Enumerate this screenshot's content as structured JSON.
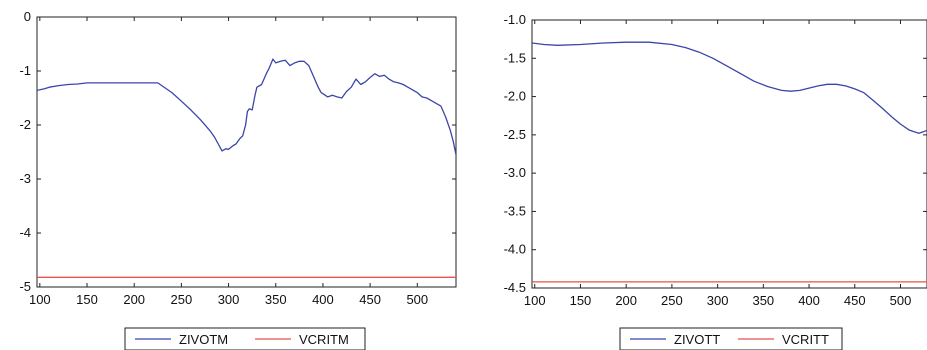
{
  "chart_data": [
    {
      "type": "line",
      "title": "",
      "xlabel": "",
      "ylabel": "",
      "xlim": [
        97,
        541
      ],
      "ylim": [
        -5,
        0
      ],
      "xticks": [
        "100",
        "150",
        "200",
        "250",
        "300",
        "350",
        "400",
        "450",
        "500"
      ],
      "yticks": [
        "0",
        "-1",
        "-2",
        "-3",
        "-4",
        "-5"
      ],
      "grid": false,
      "legend_position": "bottom",
      "series": [
        {
          "name": "ZIVOTM",
          "color": "#3b46a8",
          "x": [
            97,
            105,
            110,
            120,
            130,
            140,
            150,
            160,
            170,
            180,
            190,
            200,
            210,
            220,
            225,
            230,
            240,
            250,
            260,
            270,
            280,
            285,
            290,
            293,
            297,
            300,
            305,
            308,
            312,
            315,
            318,
            320,
            322,
            325,
            328,
            330,
            335,
            340,
            343,
            347,
            350,
            355,
            360,
            365,
            370,
            375,
            380,
            385,
            390,
            395,
            398,
            400,
            405,
            410,
            415,
            420,
            425,
            430,
            435,
            440,
            445,
            450,
            455,
            460,
            465,
            470,
            475,
            480,
            485,
            490,
            495,
            500,
            505,
            510,
            515,
            520,
            525,
            530,
            535,
            538,
            541
          ],
          "values": [
            -1.36,
            -1.33,
            -1.3,
            -1.27,
            -1.25,
            -1.24,
            -1.22,
            -1.22,
            -1.22,
            -1.22,
            -1.22,
            -1.22,
            -1.22,
            -1.22,
            -1.22,
            -1.28,
            -1.4,
            -1.56,
            -1.72,
            -1.9,
            -2.1,
            -2.22,
            -2.38,
            -2.48,
            -2.44,
            -2.45,
            -2.38,
            -2.35,
            -2.25,
            -2.2,
            -2.0,
            -1.75,
            -1.7,
            -1.72,
            -1.45,
            -1.3,
            -1.25,
            -1.05,
            -0.95,
            -0.78,
            -0.85,
            -0.82,
            -0.8,
            -0.9,
            -0.85,
            -0.82,
            -0.82,
            -0.9,
            -1.1,
            -1.3,
            -1.4,
            -1.42,
            -1.48,
            -1.45,
            -1.48,
            -1.5,
            -1.38,
            -1.3,
            -1.15,
            -1.25,
            -1.2,
            -1.12,
            -1.05,
            -1.1,
            -1.08,
            -1.15,
            -1.2,
            -1.22,
            -1.25,
            -1.3,
            -1.35,
            -1.4,
            -1.48,
            -1.5,
            -1.55,
            -1.6,
            -1.65,
            -1.85,
            -2.1,
            -2.3,
            -2.55
          ]
        },
        {
          "name": "VCRITM",
          "color": "#e8524a",
          "x": [
            97,
            541
          ],
          "values": [
            -4.82,
            -4.82
          ]
        }
      ]
    },
    {
      "type": "line",
      "title": "",
      "xlabel": "",
      "ylabel": "",
      "xlim": [
        97,
        529
      ],
      "ylim": [
        -4.5,
        -1.0
      ],
      "xticks": [
        "100",
        "150",
        "200",
        "250",
        "300",
        "350",
        "400",
        "450",
        "500"
      ],
      "yticks": [
        "-1.0",
        "-1.5",
        "-2.0",
        "-2.5",
        "-3.0",
        "-3.5",
        "-4.0",
        "-4.5"
      ],
      "grid": false,
      "legend_position": "bottom",
      "series": [
        {
          "name": "ZIVOTT",
          "color": "#3b46a8",
          "x": [
            97,
            110,
            125,
            150,
            175,
            200,
            225,
            250,
            265,
            280,
            295,
            310,
            325,
            340,
            355,
            370,
            380,
            390,
            400,
            410,
            420,
            430,
            440,
            450,
            460,
            470,
            480,
            490,
            500,
            510,
            520,
            525,
            529
          ],
          "values": [
            -1.3,
            -1.32,
            -1.33,
            -1.32,
            -1.3,
            -1.29,
            -1.29,
            -1.32,
            -1.36,
            -1.42,
            -1.5,
            -1.6,
            -1.7,
            -1.8,
            -1.87,
            -1.92,
            -1.93,
            -1.92,
            -1.89,
            -1.86,
            -1.84,
            -1.84,
            -1.86,
            -1.9,
            -1.95,
            -2.05,
            -2.15,
            -2.26,
            -2.36,
            -2.44,
            -2.48,
            -2.46,
            -2.44
          ]
        },
        {
          "name": "VCRITT",
          "color": "#e8524a",
          "x": [
            97,
            529
          ],
          "values": [
            -4.42,
            -4.42
          ]
        }
      ]
    }
  ]
}
